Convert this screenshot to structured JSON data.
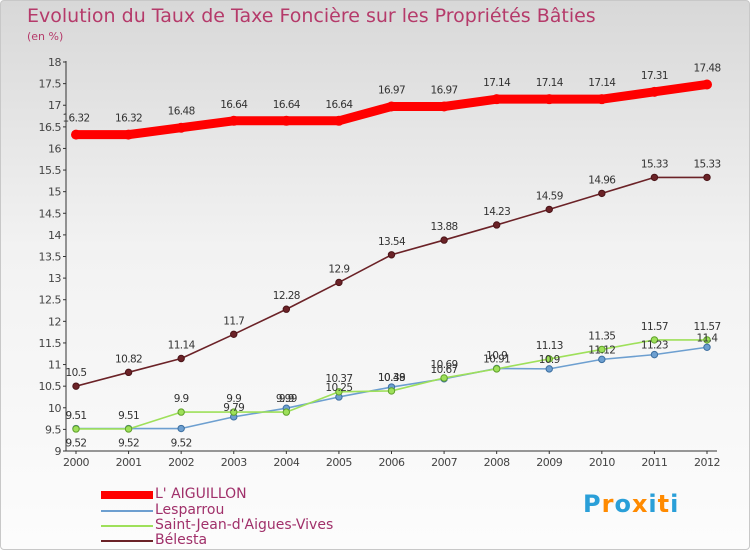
{
  "chart_data": {
    "type": "line",
    "title": "Evolution du Taux de Taxe Foncière sur les Propriétés Bâties",
    "ylabel": "(en %)",
    "xlabel": "",
    "x": [
      "2000",
      "2001",
      "2002",
      "2003",
      "2004",
      "2005",
      "2006",
      "2007",
      "2008",
      "2009",
      "2010",
      "2011",
      "2012"
    ],
    "ylim": [
      9,
      18
    ],
    "yticks": [
      "9",
      "9.5",
      "10",
      "10.5",
      "11",
      "11.5",
      "12",
      "12.5",
      "13",
      "13.5",
      "14",
      "14.5",
      "15",
      "15.5",
      "16",
      "16.5",
      "17",
      "17.5",
      "18"
    ],
    "grid": false,
    "legend_position": "bottom-left",
    "series": [
      {
        "name": "L' AIGUILLON",
        "color": "#ff0000",
        "values": [
          16.32,
          16.32,
          16.48,
          16.64,
          16.64,
          16.64,
          16.97,
          16.97,
          17.14,
          17.14,
          17.14,
          17.31,
          17.48
        ],
        "labels": [
          "16.32",
          "16.32",
          "16.48",
          "16.64",
          "16.64",
          "16.64",
          "16.97",
          "16.97",
          "17.14",
          "17.14",
          "17.14",
          "17.31",
          "17.48"
        ]
      },
      {
        "name": "Lesparrou",
        "color": "#6d9fd0",
        "values": [
          9.52,
          9.52,
          9.52,
          9.79,
          9.99,
          10.25,
          10.48,
          10.67,
          10.91,
          10.9,
          11.12,
          11.23,
          11.4
        ],
        "labels": [
          "9.52",
          "9.52",
          "9.52",
          "9.79",
          "9.99",
          "10.25",
          "10.48",
          "10.67",
          "10.91",
          "10.9",
          "11.12",
          "11.23",
          "11.4"
        ]
      },
      {
        "name": "Saint-Jean-d'Aigues-Vives",
        "color": "#9ee05a",
        "values": [
          9.51,
          9.51,
          9.9,
          9.9,
          9.9,
          10.37,
          10.39,
          10.69,
          10.9,
          11.13,
          11.35,
          11.57,
          11.57
        ],
        "labels": [
          "9.51",
          "9.51",
          "9.9",
          "9.9",
          "9.9",
          "10.37",
          "10.39",
          "10.69",
          "10.9",
          "11.13",
          "11.35",
          "11.57",
          "11.57"
        ]
      },
      {
        "name": "Bélesta",
        "color": "#6b2227",
        "values": [
          10.5,
          10.82,
          11.14,
          11.7,
          12.28,
          12.9,
          13.54,
          13.88,
          14.23,
          14.59,
          14.96,
          15.33,
          15.33
        ],
        "labels": [
          "10.5",
          "10.82",
          "11.14",
          "11.7",
          "12.28",
          "12.9",
          "13.54",
          "13.88",
          "14.23",
          "14.59",
          "14.96",
          "15.33",
          "15.33"
        ]
      }
    ]
  },
  "logo": {
    "letters": [
      "P",
      "r",
      "o",
      "x",
      "i",
      "t",
      "i"
    ],
    "colors": [
      "#2a9fd8",
      "#ff8a00",
      "#2a9fd8",
      "#ff8a00",
      "#2a9fd8",
      "#ff8a00",
      "#2a9fd8"
    ]
  }
}
